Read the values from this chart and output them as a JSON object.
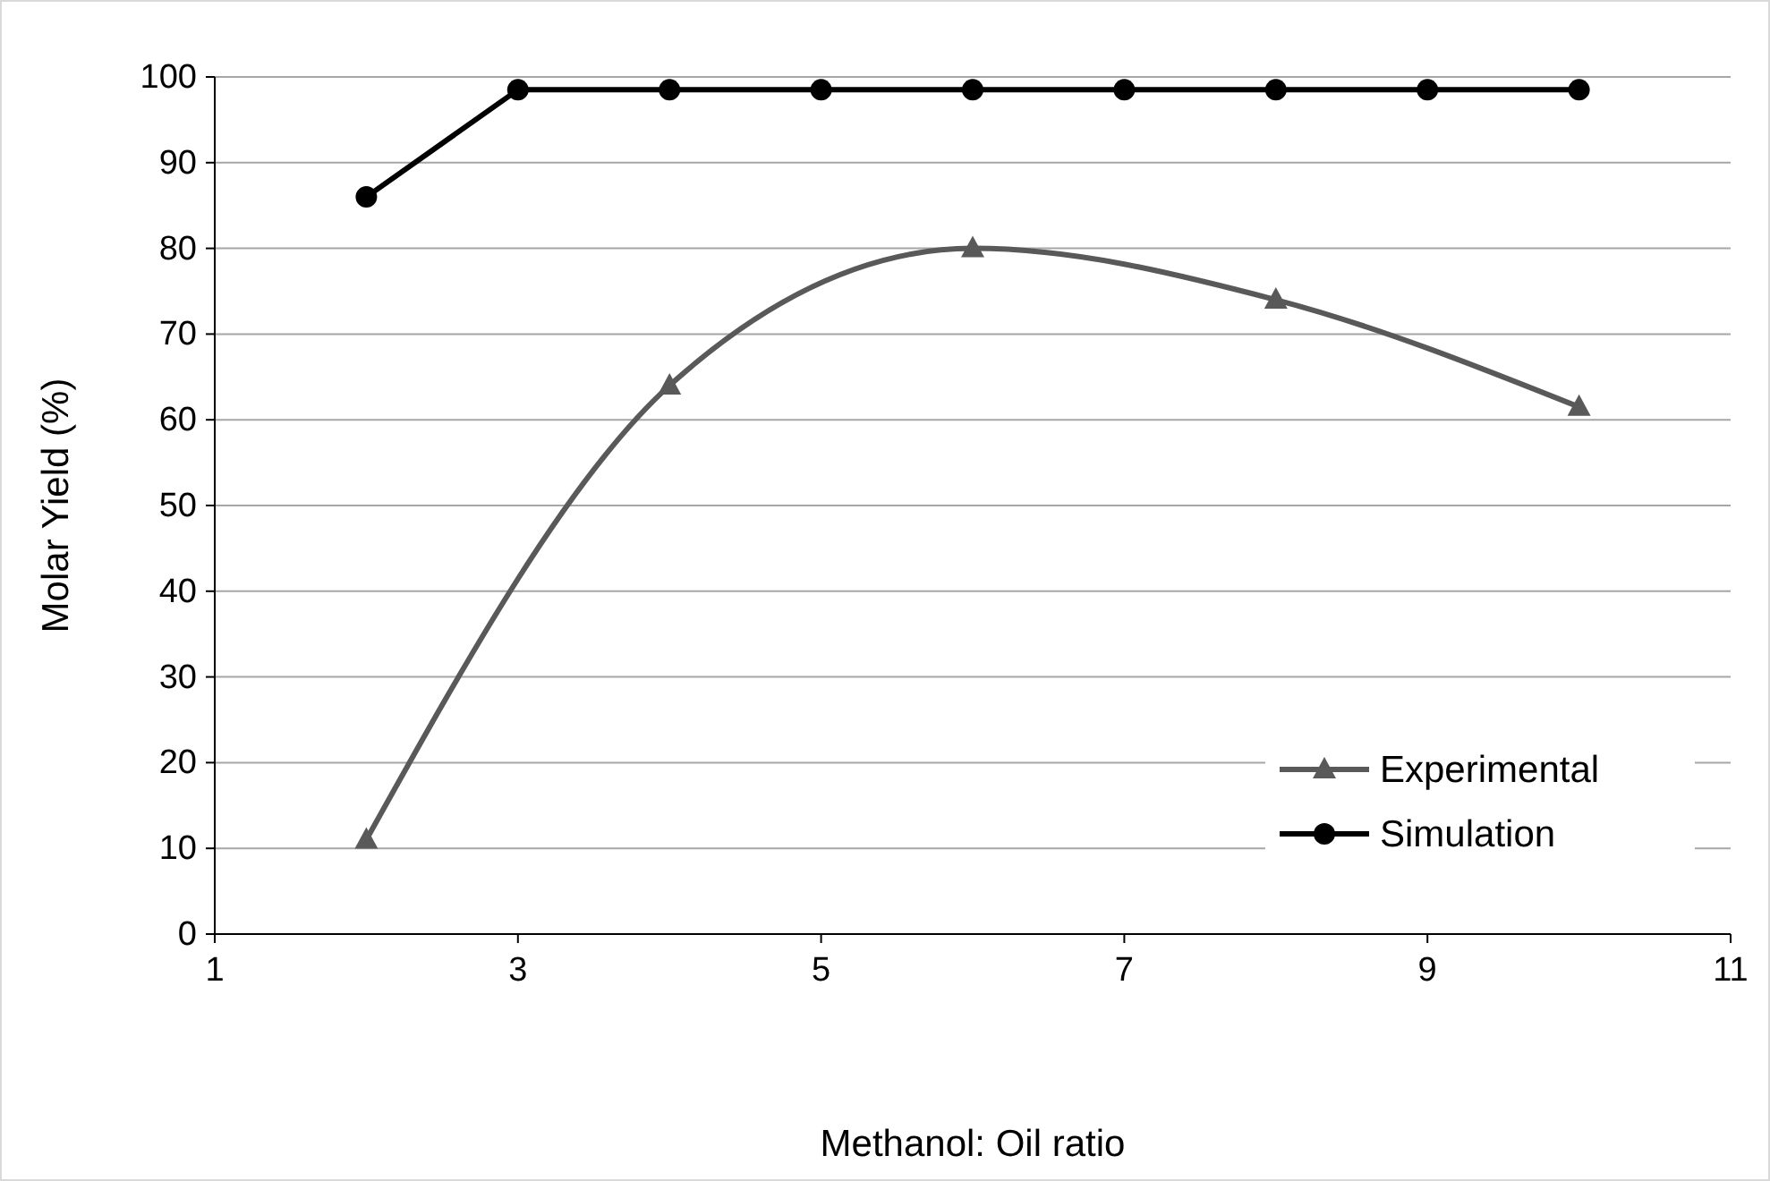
{
  "chart_data": {
    "type": "line",
    "xlabel": "Methanol: Oil ratio",
    "ylabel": "Molar Yield (%)",
    "xlim": [
      1,
      11
    ],
    "xticks": [
      1,
      3,
      5,
      7,
      9,
      11
    ],
    "ylim": [
      0,
      100
    ],
    "yticks": [
      0,
      10,
      20,
      30,
      40,
      50,
      60,
      70,
      80,
      90,
      100
    ],
    "grid": "y",
    "legend": "bottom right",
    "series": [
      {
        "name": "Experimental",
        "color": "#595959",
        "marker": "triangle",
        "x": [
          2,
          4,
          6,
          8,
          10
        ],
        "values": [
          11,
          64,
          80,
          74,
          61.5
        ]
      },
      {
        "name": "Simulation",
        "color": "#000000",
        "marker": "circle",
        "x": [
          2,
          3,
          4,
          5,
          6,
          7,
          8,
          9,
          10
        ],
        "values": [
          86,
          98.5,
          98.5,
          98.5,
          98.5,
          98.5,
          98.5,
          98.5,
          98.5
        ]
      }
    ]
  }
}
